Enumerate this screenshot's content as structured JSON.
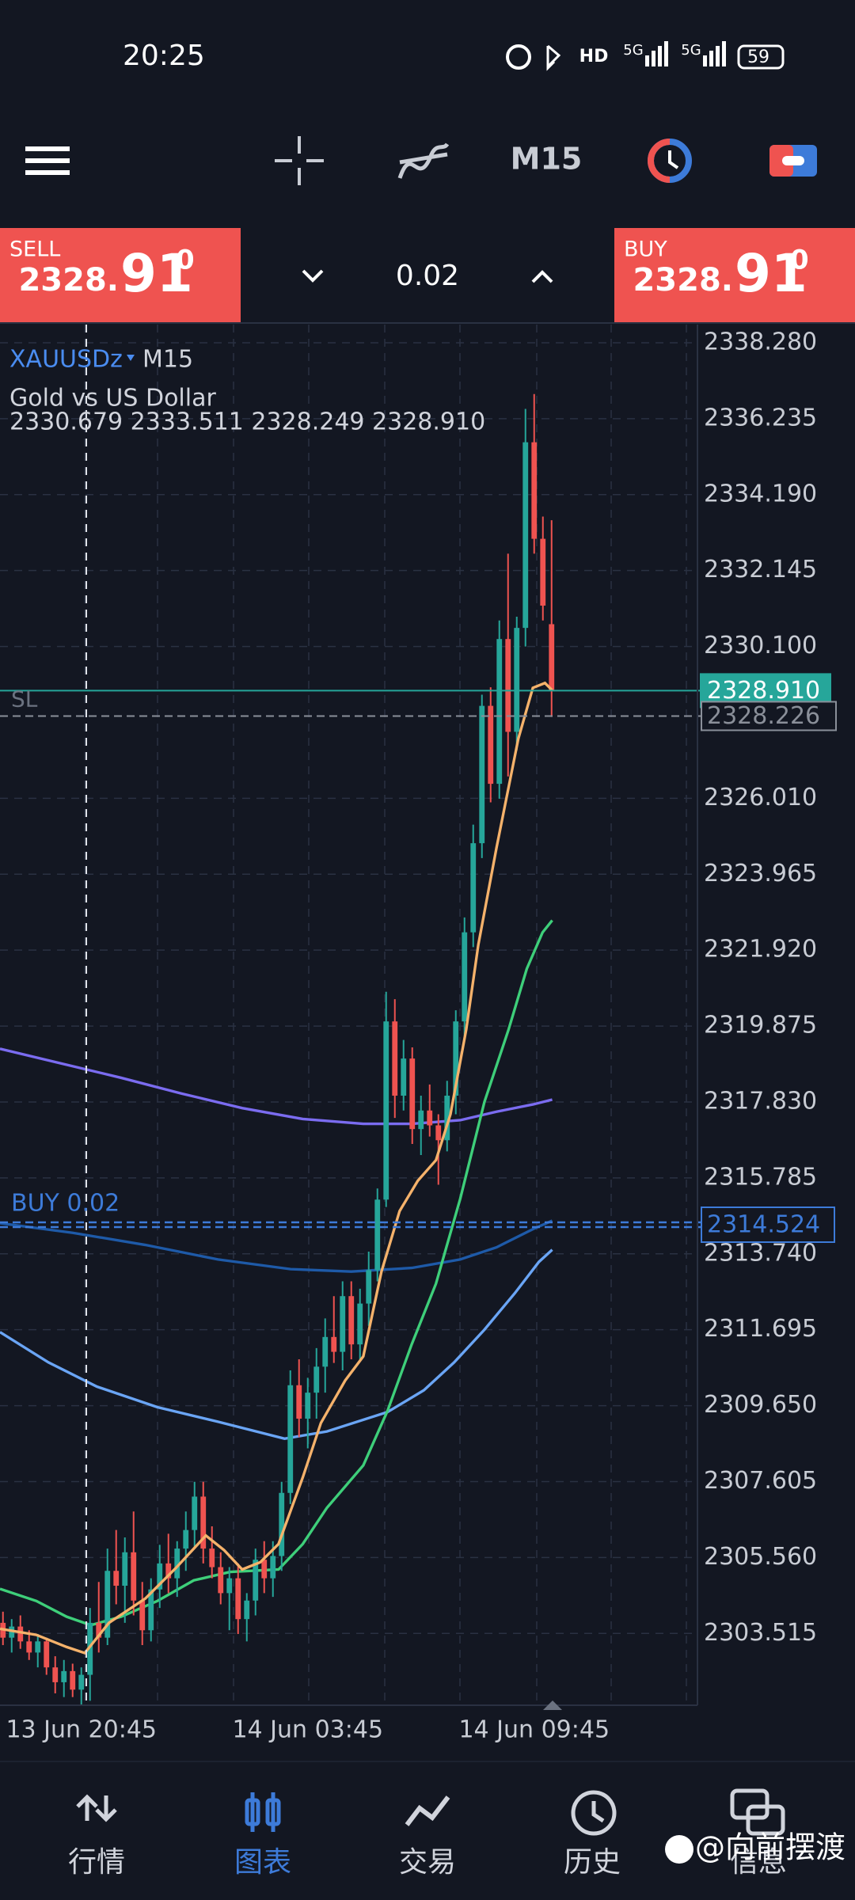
{
  "status_bar": {
    "time": "20:25",
    "icons_text": [
      "HD",
      "5G",
      "5G"
    ],
    "battery": "59"
  },
  "toolbar": {
    "timeframe": "M15"
  },
  "trade_panel": {
    "sell": {
      "label": "SELL",
      "price_main": "2328.",
      "price_big": "91",
      "price_sup": "0"
    },
    "buy": {
      "label": "BUY",
      "price_main": "2328.",
      "price_big": "91",
      "price_sup": "0"
    },
    "volume": "0.02"
  },
  "chart": {
    "type": "candlestick",
    "symbol": "XAUUSDz",
    "timeframe": "M15",
    "description": "Gold vs US Dollar",
    "ohlc": "2330.679 2333.511 2328.249 2328.910",
    "sl_label": "SL",
    "position_label": "BUY 0.02",
    "ylim": [
      2301.58,
      2338.77
    ],
    "xlim": [
      -0.34,
      79.75
    ],
    "yticks": [
      {
        "value": 2338.28,
        "label": "2338.280"
      },
      {
        "value": 2336.235,
        "label": "2336.235"
      },
      {
        "value": 2334.19,
        "label": "2334.190"
      },
      {
        "value": 2332.145,
        "label": "2332.145"
      },
      {
        "value": 2330.1,
        "label": "2330.100"
      },
      {
        "value": 2326.01,
        "label": "2326.010"
      },
      {
        "value": 2323.965,
        "label": "2323.965"
      },
      {
        "value": 2321.92,
        "label": "2321.920"
      },
      {
        "value": 2319.875,
        "label": "2319.875"
      },
      {
        "value": 2317.83,
        "label": "2317.830"
      },
      {
        "value": 2315.785,
        "label": "2315.785"
      },
      {
        "value": 2313.74,
        "label": "2313.740"
      },
      {
        "value": 2311.695,
        "label": "2311.695"
      },
      {
        "value": 2309.65,
        "label": "2309.650"
      },
      {
        "value": 2307.605,
        "label": "2307.605"
      },
      {
        "value": 2305.56,
        "label": "2305.560"
      },
      {
        "value": 2303.515,
        "label": "2303.515"
      }
    ],
    "price_lines": [
      {
        "value": 2328.91,
        "label": "2328.910",
        "color": "#26a69a"
      },
      {
        "value": 2328.226,
        "label": "2328.226",
        "color": "#8a8f99"
      },
      {
        "value": 2314.524,
        "label": "2314.524",
        "color": "#3d7bd9"
      }
    ],
    "xticks": [
      {
        "value": 9,
        "label": "13 Jun 20:45"
      },
      {
        "value": 35,
        "label": "14 Jun 03:45"
      },
      {
        "value": 61,
        "label": "14 Jun 09:45"
      }
    ],
    "up_color": "#26a69a",
    "down_color": "#ef5350",
    "candles": [
      [
        2303.8,
        2304.1,
        2303.2,
        2303.4
      ],
      [
        2303.4,
        2303.9,
        2303.0,
        2303.7
      ],
      [
        2303.7,
        2304.0,
        2303.1,
        2303.3
      ],
      [
        2303.3,
        2303.6,
        2302.8,
        2303.0
      ],
      [
        2303.0,
        2303.5,
        2302.6,
        2303.3
      ],
      [
        2303.3,
        2303.4,
        2302.4,
        2302.6
      ],
      [
        2302.6,
        2302.9,
        2301.9,
        2302.2
      ],
      [
        2302.2,
        2302.8,
        2301.8,
        2302.5
      ],
      [
        2302.5,
        2302.7,
        2301.8,
        2302.0
      ],
      [
        2302.0,
        2302.6,
        2301.6,
        2302.4
      ],
      [
        2302.4,
        2304.2,
        2301.7,
        2303.8
      ],
      [
        2303.8,
        2304.9,
        2303.0,
        2303.4
      ],
      [
        2303.4,
        2305.8,
        2303.2,
        2305.2
      ],
      [
        2305.2,
        2306.3,
        2304.3,
        2304.8
      ],
      [
        2304.8,
        2306.1,
        2303.8,
        2305.7
      ],
      [
        2305.7,
        2306.8,
        2304.0,
        2304.4
      ],
      [
        2304.4,
        2304.9,
        2303.2,
        2303.6
      ],
      [
        2303.6,
        2305.0,
        2303.3,
        2304.7
      ],
      [
        2304.7,
        2305.9,
        2304.2,
        2305.4
      ],
      [
        2305.4,
        2306.2,
        2304.6,
        2305.0
      ],
      [
        2305.0,
        2306.0,
        2304.5,
        2305.8
      ],
      [
        2305.8,
        2306.8,
        2305.2,
        2306.3
      ],
      [
        2306.3,
        2307.6,
        2305.8,
        2307.2
      ],
      [
        2307.2,
        2307.6,
        2305.4,
        2305.8
      ],
      [
        2305.8,
        2306.4,
        2305.0,
        2305.3
      ],
      [
        2305.3,
        2305.7,
        2304.3,
        2304.6
      ],
      [
        2304.6,
        2305.3,
        2303.6,
        2305.0
      ],
      [
        2305.0,
        2305.4,
        2303.5,
        2303.9
      ],
      [
        2303.9,
        2304.6,
        2303.3,
        2304.4
      ],
      [
        2304.4,
        2305.8,
        2304.0,
        2305.5
      ],
      [
        2305.5,
        2306.0,
        2304.6,
        2305.0
      ],
      [
        2305.0,
        2306.0,
        2304.5,
        2305.6
      ],
      [
        2305.6,
        2307.6,
        2305.2,
        2307.3
      ],
      [
        2307.3,
        2310.6,
        2307.0,
        2310.2
      ],
      [
        2310.2,
        2310.9,
        2308.8,
        2309.3
      ],
      [
        2309.3,
        2310.4,
        2308.5,
        2310.0
      ],
      [
        2310.0,
        2311.2,
        2309.3,
        2310.7
      ],
      [
        2310.7,
        2312.0,
        2310.0,
        2311.5
      ],
      [
        2311.5,
        2312.6,
        2310.8,
        2311.1
      ],
      [
        2311.1,
        2313.0,
        2310.6,
        2312.6
      ],
      [
        2312.6,
        2313.0,
        2310.9,
        2311.3
      ],
      [
        2311.3,
        2312.8,
        2310.9,
        2312.4
      ],
      [
        2312.4,
        2313.8,
        2311.8,
        2313.3
      ],
      [
        2313.3,
        2315.5,
        2313.0,
        2315.2
      ],
      [
        2315.2,
        2320.8,
        2315.0,
        2320.0
      ],
      [
        2320.0,
        2320.6,
        2317.4,
        2318.0
      ],
      [
        2318.0,
        2319.5,
        2317.6,
        2319.0
      ],
      [
        2319.0,
        2319.3,
        2316.7,
        2317.1
      ],
      [
        2317.1,
        2318.0,
        2316.4,
        2317.6
      ],
      [
        2317.6,
        2318.3,
        2316.9,
        2317.2
      ],
      [
        2317.2,
        2317.5,
        2315.6,
        2316.8
      ],
      [
        2316.8,
        2318.4,
        2316.5,
        2318.0
      ],
      [
        2318.0,
        2320.3,
        2317.5,
        2320.0
      ],
      [
        2320.0,
        2322.8,
        2319.6,
        2322.4
      ],
      [
        2322.4,
        2325.3,
        2322.0,
        2324.8
      ],
      [
        2324.8,
        2328.8,
        2324.4,
        2328.5
      ],
      [
        2328.5,
        2329.0,
        2325.9,
        2326.4
      ],
      [
        2326.4,
        2330.8,
        2326.0,
        2330.3
      ],
      [
        2330.3,
        2332.6,
        2326.6,
        2327.8
      ],
      [
        2327.8,
        2330.9,
        2327.3,
        2330.6
      ],
      [
        2330.6,
        2336.5,
        2330.1,
        2335.6
      ],
      [
        2335.6,
        2336.9,
        2332.6,
        2333.0
      ],
      [
        2333.0,
        2333.6,
        2330.8,
        2331.2
      ],
      [
        2330.7,
        2333.5,
        2328.2,
        2328.9
      ]
    ]
  },
  "nav": [
    {
      "label": "行情"
    },
    {
      "label": "图表"
    },
    {
      "label": "交易"
    },
    {
      "label": "历史"
    },
    {
      "label": "信息"
    }
  ],
  "watermark": "@向前摆渡"
}
